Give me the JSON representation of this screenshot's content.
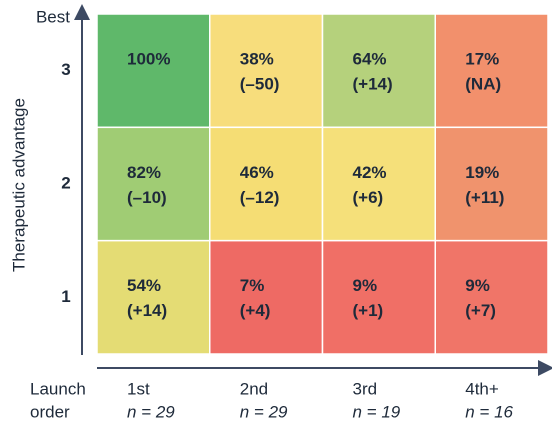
{
  "chart_data": {
    "type": "heatmap",
    "y_label": "Therapeutic advantage",
    "y_top_label": "Best",
    "x_label_lines": [
      "Launch",
      "order"
    ],
    "x_categories": [
      "1st",
      "2nd",
      "3rd",
      "4th+"
    ],
    "counts": [
      29,
      29,
      19,
      16
    ],
    "count_labels": [
      "n = 29",
      "n = 29",
      "n = 19",
      "n = 16"
    ],
    "y_categories": [
      "3",
      "2",
      "1"
    ],
    "values": [
      [
        100,
        38,
        64,
        17
      ],
      [
        82,
        46,
        42,
        19
      ],
      [
        54,
        7,
        9,
        9
      ]
    ],
    "value_labels": [
      [
        "100%",
        "38%",
        "64%",
        "17%"
      ],
      [
        "82%",
        "46%",
        "42%",
        "19%"
      ],
      [
        "54%",
        "7%",
        "9%",
        "9%"
      ]
    ],
    "changes": [
      [
        null,
        -50,
        14,
        null
      ],
      [
        -10,
        -12,
        6,
        11
      ],
      [
        14,
        4,
        1,
        7
      ]
    ],
    "change_labels": [
      [
        null,
        "(–50)",
        "(+14)",
        "(NA)"
      ],
      [
        "(–10)",
        "(–12)",
        "(+6)",
        "(+11)"
      ],
      [
        "(+14)",
        "(+4)",
        "(+1)",
        "(+7)"
      ]
    ],
    "colors": [
      [
        "#5fb86a",
        "#f7dd7c",
        "#b5d17c",
        "#f2906c"
      ],
      [
        "#a0cc74",
        "#f5dd74",
        "#f5e07a",
        "#f0936d"
      ],
      [
        "#e4dc74",
        "#ee6a64",
        "#f06f66",
        "#f07568"
      ]
    ]
  }
}
